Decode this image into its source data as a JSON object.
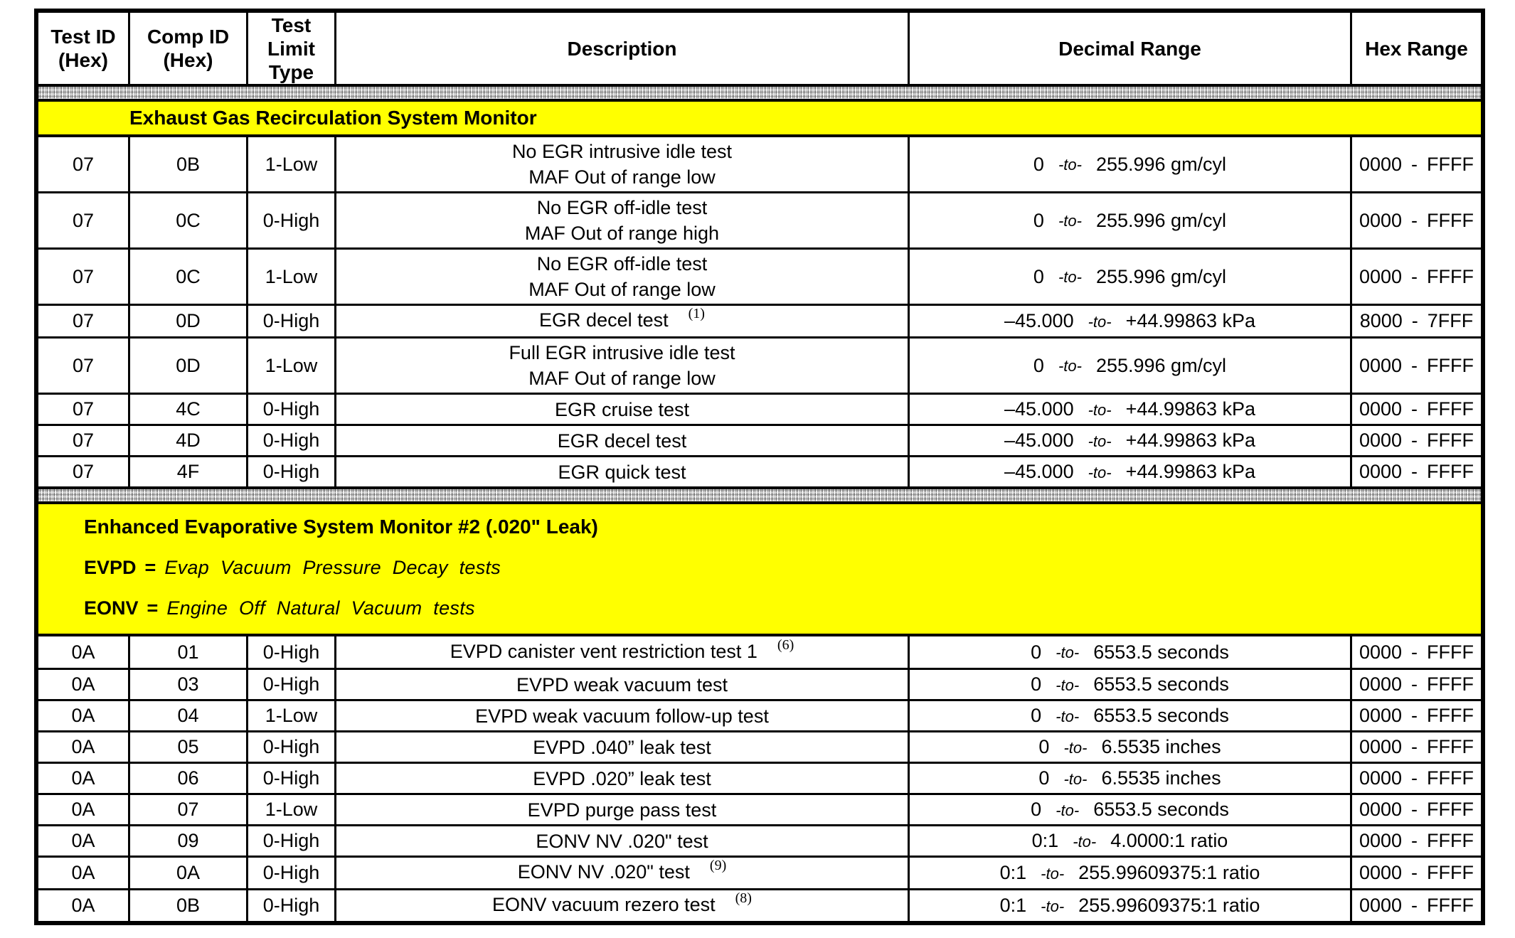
{
  "colors": {
    "section_header_bg": "#ffff00",
    "line_color": "#000000"
  },
  "table": {
    "to_label": "-to-",
    "hex_sep": "-",
    "eq": "=",
    "columns": [
      {
        "key": "test-id",
        "lines": [
          "Test ID",
          "(Hex)"
        ]
      },
      {
        "key": "comp-id",
        "lines": [
          "Comp ID",
          "(Hex)"
        ]
      },
      {
        "key": "test-limit-type",
        "lines": [
          "Test",
          "Limit",
          "Type"
        ]
      },
      {
        "key": "description",
        "lines": [
          "Description"
        ]
      },
      {
        "key": "decimal-range",
        "lines": [
          "Decimal Range"
        ]
      },
      {
        "key": "hex-range",
        "lines": [
          "Hex Range"
        ]
      }
    ],
    "sections": [
      {
        "title": "Exhaust Gas Recirculation System Monitor",
        "defs": [],
        "rows": [
          {
            "test": "07",
            "comp": "0B",
            "limit": "1-Low",
            "desc": [
              "No EGR intrusive idle test",
              "MAF Out of range low"
            ],
            "note": "",
            "dec_from": "0",
            "dec_to": "255.996 gm/cyl",
            "hex_from": "0000",
            "hex_to": "FFFF"
          },
          {
            "test": "07",
            "comp": "0C",
            "limit": "0-High",
            "desc": [
              "No EGR off-idle test",
              "MAF Out of range high"
            ],
            "note": "",
            "dec_from": "0",
            "dec_to": "255.996 gm/cyl",
            "hex_from": "0000",
            "hex_to": "FFFF"
          },
          {
            "test": "07",
            "comp": "0C",
            "limit": "1-Low",
            "desc": [
              "No EGR off-idle test",
              "MAF Out of range low"
            ],
            "note": "",
            "dec_from": "0",
            "dec_to": "255.996 gm/cyl",
            "hex_from": "0000",
            "hex_to": "FFFF"
          },
          {
            "test": "07",
            "comp": "0D",
            "limit": "0-High",
            "desc": [
              "EGR decel test"
            ],
            "note": "(1)",
            "dec_from": "–45.000",
            "dec_to": "+44.99863 kPa",
            "hex_from": "8000",
            "hex_to": "7FFF"
          },
          {
            "test": "07",
            "comp": "0D",
            "limit": "1-Low",
            "desc": [
              "Full EGR intrusive idle test",
              "MAF Out of range low"
            ],
            "note": "",
            "dec_from": "0",
            "dec_to": "255.996 gm/cyl",
            "hex_from": "0000",
            "hex_to": "FFFF"
          },
          {
            "test": "07",
            "comp": "4C",
            "limit": "0-High",
            "desc": [
              "EGR cruise test"
            ],
            "note": "",
            "dec_from": "–45.000",
            "dec_to": "+44.99863 kPa",
            "hex_from": "0000",
            "hex_to": "FFFF"
          },
          {
            "test": "07",
            "comp": "4D",
            "limit": "0-High",
            "desc": [
              "EGR decel test"
            ],
            "note": "",
            "dec_from": "–45.000",
            "dec_to": "+44.99863 kPa",
            "hex_from": "0000",
            "hex_to": "FFFF"
          },
          {
            "test": "07",
            "comp": "4F",
            "limit": "0-High",
            "desc": [
              "EGR quick test"
            ],
            "note": "",
            "dec_from": "–45.000",
            "dec_to": "+44.99863 kPa",
            "hex_from": "0000",
            "hex_to": "FFFF"
          }
        ]
      },
      {
        "title": "Enhanced Evaporative System Monitor #2 (.020\" Leak)",
        "defs": [
          {
            "abbr": "EVPD",
            "text": "Evap Vacuum Pressure Decay tests"
          },
          {
            "abbr": "EONV",
            "text": "Engine Off Natural Vacuum tests"
          }
        ],
        "rows": [
          {
            "test": "0A",
            "comp": "01",
            "limit": "0-High",
            "desc": [
              "EVPD canister vent restriction test 1"
            ],
            "note": "(6)",
            "dec_from": "0",
            "dec_to": "6553.5 seconds",
            "hex_from": "0000",
            "hex_to": "FFFF"
          },
          {
            "test": "0A",
            "comp": "03",
            "limit": "0-High",
            "desc": [
              "EVPD weak vacuum test"
            ],
            "note": "",
            "dec_from": "0",
            "dec_to": "6553.5 seconds",
            "hex_from": "0000",
            "hex_to": "FFFF"
          },
          {
            "test": "0A",
            "comp": "04",
            "limit": "1-Low",
            "desc": [
              "EVPD weak vacuum follow-up test"
            ],
            "note": "",
            "dec_from": "0",
            "dec_to": "6553.5 seconds",
            "hex_from": "0000",
            "hex_to": "FFFF"
          },
          {
            "test": "0A",
            "comp": "05",
            "limit": "0-High",
            "desc": [
              "EVPD .040” leak test"
            ],
            "note": "",
            "dec_from": "0",
            "dec_to": "6.5535 inches",
            "hex_from": "0000",
            "hex_to": "FFFF"
          },
          {
            "test": "0A",
            "comp": "06",
            "limit": "0-High",
            "desc": [
              "EVPD .020” leak test"
            ],
            "note": "",
            "dec_from": "0",
            "dec_to": "6.5535 inches",
            "hex_from": "0000",
            "hex_to": "FFFF"
          },
          {
            "test": "0A",
            "comp": "07",
            "limit": "1-Low",
            "desc": [
              "EVPD purge pass test"
            ],
            "note": "",
            "dec_from": "0",
            "dec_to": "6553.5 seconds",
            "hex_from": "0000",
            "hex_to": "FFFF"
          },
          {
            "test": "0A",
            "comp": "09",
            "limit": "0-High",
            "desc": [
              "EONV NV .020\" test"
            ],
            "note": "",
            "dec_from": "0:1",
            "dec_to": "4.0000:1 ratio",
            "hex_from": "0000",
            "hex_to": "FFFF"
          },
          {
            "test": "0A",
            "comp": "0A",
            "limit": "0-High",
            "desc": [
              "EONV NV .020\" test"
            ],
            "note": "(9)",
            "dec_from": "0:1",
            "dec_to": "255.99609375:1 ratio",
            "hex_from": "0000",
            "hex_to": "FFFF"
          },
          {
            "test": "0A",
            "comp": "0B",
            "limit": "0-High",
            "desc": [
              "EONV vacuum rezero test"
            ],
            "note": "(8)",
            "dec_from": "0:1",
            "dec_to": "255.99609375:1 ratio",
            "hex_from": "0000",
            "hex_to": "FFFF"
          }
        ]
      }
    ]
  }
}
